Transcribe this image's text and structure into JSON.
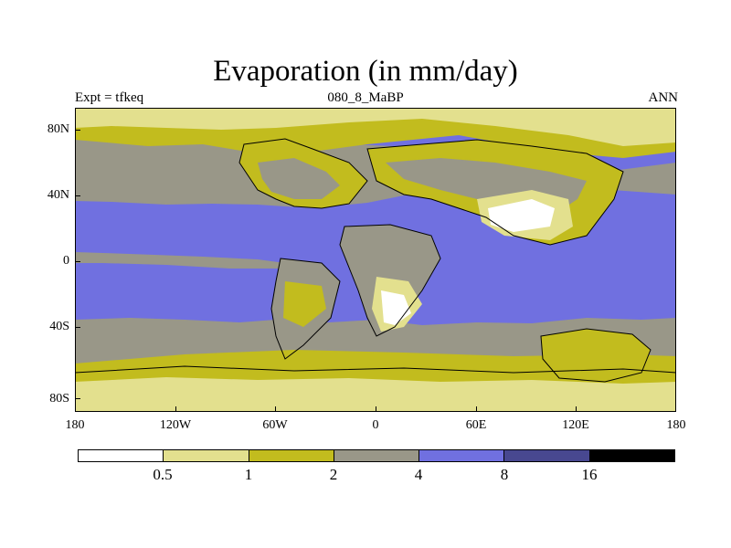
{
  "header": {
    "title": "Evaporation (in mm/day)",
    "left": "Expt = tfkeq",
    "center": "080_8_MaBP",
    "right": "ANN"
  },
  "axes": {
    "y_labels": [
      "80N",
      "40N",
      "0",
      "40S",
      "80S"
    ],
    "x_labels": [
      "180",
      "120W",
      "60W",
      "0",
      "60E",
      "120E",
      "180"
    ]
  },
  "colorbar": {
    "colors": [
      "#ffffff",
      "#e3e08e",
      "#c2bc1e",
      "#999788",
      "#7070e0",
      "#484890",
      "#000000"
    ],
    "labels": [
      "0.5",
      "1",
      "2",
      "4",
      "8",
      "16"
    ]
  },
  "map_colors": {
    "ocean_high": "#7070e0",
    "mid": "#999788",
    "low": "#c2bc1e",
    "very_low": "#e3e08e",
    "minimal": "#ffffff",
    "coast": "#000000"
  }
}
